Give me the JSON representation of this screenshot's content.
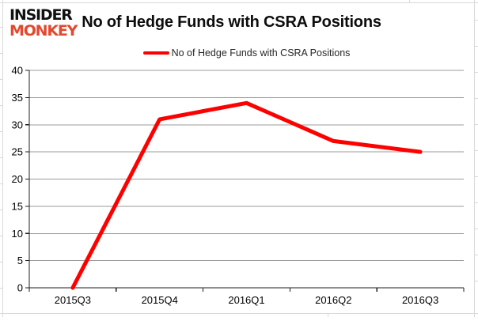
{
  "header": {
    "logo_line1": "INSIDER",
    "logo_line2": "MONKEY",
    "logo_line1_color": "#111111",
    "logo_line2_color": "#e2492f",
    "title": "No of Hedge Funds with CSRA Positions"
  },
  "legend": {
    "label": "No of Hedge Funds with CSRA Positions",
    "swatch_color": "#ff0000"
  },
  "chart_data": {
    "type": "line",
    "title": "No of Hedge Funds with CSRA Positions",
    "categories": [
      "2015Q3",
      "2015Q4",
      "2016Q1",
      "2016Q2",
      "2016Q3"
    ],
    "series": [
      {
        "name": "No of Hedge Funds with CSRA Positions",
        "values": [
          0,
          31,
          34,
          27,
          25
        ],
        "color": "#ff0000"
      }
    ],
    "ylim": [
      0,
      40
    ],
    "ytick_step": 5,
    "grid": true,
    "legend_position": "top-center",
    "xlabel": "",
    "ylabel": ""
  },
  "style": {
    "gridline_color": "#9b9b9b",
    "axis_color": "#1f1f1f",
    "tick_label_color": "#000000",
    "sheet_line_color": "#d9d9d9"
  }
}
